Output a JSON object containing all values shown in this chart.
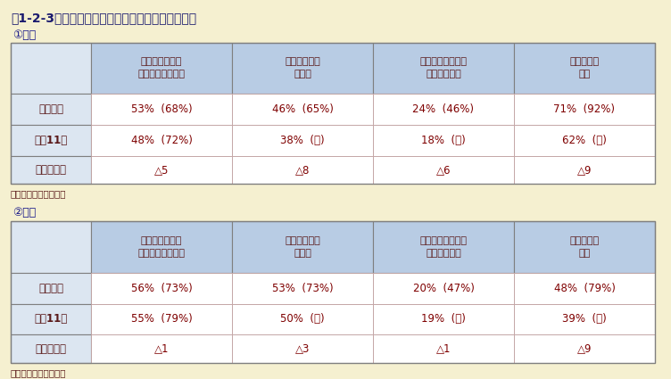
{
  "title": "表1-2-3　　数学・理科に対する意識（中学２年）",
  "background_color": "#f5f0d0",
  "table_bg_header": "#b8cce4",
  "table_bg_row_label": "#dce6f1",
  "table_bg_data": "#ffffff",
  "table_border_outer": "#7f7f7f",
  "table_border_inner": "#c0a0a0",
  "text_color_data": "#7f0000",
  "text_color_label": "#5a1a1a",
  "text_color_title": "#1a1a6e",
  "text_color_section": "#1a1a8a",
  "section1_label": "①数学",
  "section2_label": "②理科",
  "footnote": "（　）内は国際平均値",
  "math_headers": [
    "数学が「好き」\nまたは「大好き」",
    "数学の勉強は\n楽しい",
    "将来，数学を使う\n仕事がしたい",
    "生活の中で\n大切"
  ],
  "science_headers": [
    "理科が「好き」\nまたは「大好き」",
    "理科の勉強は\n楽しい",
    "将来，理科を使う\n仕事がしたい",
    "生活の中で\n大切"
  ],
  "row_labels": [
    "平成７年",
    "平成11年",
    "前回との差"
  ],
  "math_data": [
    [
      "53%  (68%)",
      "46%  (65%)",
      "24%  (46%)",
      "71%  (92%)"
    ],
    [
      "48%  (72%)",
      "38%  (－)",
      "18%  (－)",
      "62%  (－)"
    ],
    [
      "△5",
      "△8",
      "△6",
      "△9"
    ]
  ],
  "science_data": [
    [
      "56%  (73%)",
      "53%  (73%)",
      "20%  (47%)",
      "48%  (79%)"
    ],
    [
      "55%  (79%)",
      "50%  (－)",
      "19%  (－)",
      "39%  (－)"
    ],
    [
      "△1",
      "△3",
      "△1",
      "△9"
    ]
  ]
}
